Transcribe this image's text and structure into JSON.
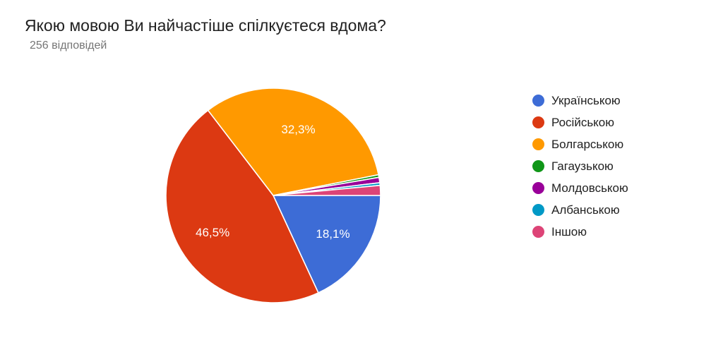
{
  "chart_data": {
    "type": "pie",
    "title": "Якою мовою Ви найчастіше спілкуєтеся вдома?",
    "subtitle": "256 відповідей",
    "responses_count": 256,
    "legend_position": "right",
    "background_color": "#ffffff",
    "title_color": "#212121",
    "subtitle_color": "#757575",
    "slice_border_color": "#ffffff",
    "start_angle_deg": 90,
    "slices": [
      {
        "key": "ukrainian",
        "label": "Українською",
        "percent": 18.1,
        "display": "18,1%",
        "color": "#3D6CD6",
        "show_label": true
      },
      {
        "key": "russian",
        "label": "Російською",
        "percent": 46.5,
        "display": "46,5%",
        "color": "#DC3912",
        "show_label": true
      },
      {
        "key": "bulgarian",
        "label": "Болгарською",
        "percent": 32.3,
        "display": "32,3%",
        "color": "#FF9900",
        "show_label": true
      },
      {
        "key": "gagauz",
        "label": "Гагаузькою",
        "percent": 0.4,
        "display": null,
        "color": "#109618",
        "show_label": false
      },
      {
        "key": "moldovan",
        "label": "Молдовською",
        "percent": 0.8,
        "display": null,
        "color": "#990099",
        "show_label": false
      },
      {
        "key": "albanian",
        "label": "Албанською",
        "percent": 0.4,
        "display": null,
        "color": "#0099C6",
        "show_label": false
      },
      {
        "key": "other",
        "label": "Іншою",
        "percent": 1.5,
        "display": null,
        "color": "#DD4477",
        "show_label": false
      }
    ]
  }
}
